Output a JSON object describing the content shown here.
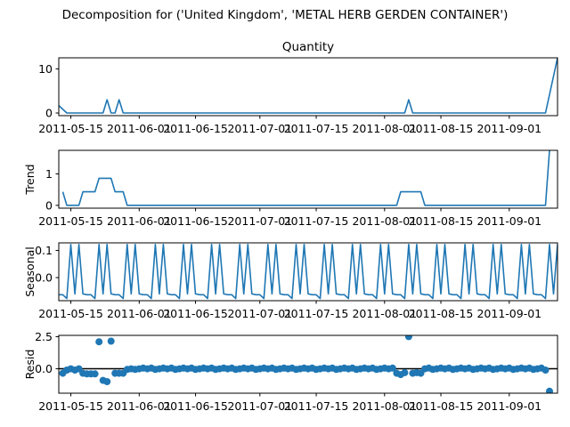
{
  "suptitle": "Decomposition for ('United Kingdom', 'METAL HERB GERDEN CONTAINER')",
  "line_color": "#1f77b4",
  "zero_line_color": "#000000",
  "x_ticks": [
    "2011-05-15",
    "2011-06-01",
    "2011-06-15",
    "2011-07-01",
    "2011-07-15",
    "2011-08-01",
    "2011-08-15",
    "2011-09-01"
  ],
  "x_tick_days": [
    3,
    20,
    34,
    50,
    64,
    81,
    95,
    112
  ],
  "x_range_days": [
    0,
    124
  ],
  "start_date": "2011-05-12",
  "chart_data": [
    {
      "type": "line",
      "title": "Quantity",
      "ylabel": "",
      "yticks": [
        "0",
        "10"
      ],
      "ytick_values": [
        0,
        10
      ],
      "ylim": [
        -0.6,
        12.5
      ],
      "points": [
        [
          0,
          1.7
        ],
        [
          2,
          0
        ],
        [
          11,
          0
        ],
        [
          12,
          3
        ],
        [
          13,
          0
        ],
        [
          14,
          0
        ],
        [
          15,
          3
        ],
        [
          16,
          0
        ],
        [
          86,
          0
        ],
        [
          87,
          3
        ],
        [
          88,
          0
        ],
        [
          121,
          0
        ],
        [
          124,
          12.5
        ]
      ]
    },
    {
      "type": "line",
      "title": "",
      "ylabel": "Trend",
      "yticks": [
        "0",
        "1"
      ],
      "ytick_values": [
        0,
        1
      ],
      "ylim": [
        -0.09,
        1.75
      ],
      "points": [
        [
          1,
          0.43
        ],
        [
          2,
          0
        ],
        [
          5,
          0
        ],
        [
          6,
          0.43
        ],
        [
          9,
          0.43
        ],
        [
          10,
          0.86
        ],
        [
          13,
          0.86
        ],
        [
          14,
          0.43
        ],
        [
          16,
          0.43
        ],
        [
          17,
          0
        ],
        [
          84,
          0
        ],
        [
          85,
          0.43
        ],
        [
          90,
          0.43
        ],
        [
          91,
          0
        ],
        [
          121,
          0
        ],
        [
          122,
          1.75
        ]
      ]
    },
    {
      "type": "line",
      "title": "",
      "ylabel": "Seasonal",
      "yticks": [
        "0.1",
        "0.0"
      ],
      "ytick_values": [
        0.1,
        0
      ],
      "ylim": [
        -0.085,
        0.128
      ],
      "weekly_pattern": [
        -0.063,
        -0.063,
        -0.077,
        0.122,
        -0.06,
        0.122,
        -0.06
      ],
      "phase_start_day": 0
    },
    {
      "type": "scatter",
      "title": "",
      "ylabel": "Resid",
      "yticks": [
        "2.5",
        "0.0"
      ],
      "ytick_values": [
        2.5,
        0
      ],
      "ylim": [
        -1.9,
        2.6
      ],
      "points": [
        [
          1,
          -0.35
        ],
        [
          2,
          -0.1
        ],
        [
          3,
          0
        ],
        [
          4,
          -0.1
        ],
        [
          5,
          0
        ],
        [
          6,
          -0.35
        ],
        [
          7,
          -0.4
        ],
        [
          8,
          -0.4
        ],
        [
          9,
          -0.4
        ],
        [
          10,
          2.1
        ],
        [
          11,
          -0.9
        ],
        [
          12,
          -1.0
        ],
        [
          13,
          2.15
        ],
        [
          14,
          -0.35
        ],
        [
          15,
          -0.35
        ],
        [
          16,
          -0.35
        ],
        [
          17,
          -0.05
        ],
        [
          18,
          0
        ],
        [
          19,
          -0.05
        ],
        [
          20,
          0
        ],
        [
          21,
          0.05
        ],
        [
          22,
          0
        ],
        [
          23,
          0.05
        ],
        [
          24,
          -0.05
        ],
        [
          25,
          0
        ],
        [
          26,
          0.05
        ],
        [
          27,
          0
        ],
        [
          28,
          0.05
        ],
        [
          29,
          -0.05
        ],
        [
          30,
          0
        ],
        [
          31,
          0.05
        ],
        [
          32,
          0
        ],
        [
          33,
          0.05
        ],
        [
          34,
          -0.05
        ],
        [
          35,
          0
        ],
        [
          36,
          0.05
        ],
        [
          37,
          0
        ],
        [
          38,
          0.05
        ],
        [
          39,
          -0.05
        ],
        [
          40,
          0
        ],
        [
          41,
          0.05
        ],
        [
          42,
          0
        ],
        [
          43,
          0.05
        ],
        [
          44,
          -0.05
        ],
        [
          45,
          0
        ],
        [
          46,
          0.05
        ],
        [
          47,
          0
        ],
        [
          48,
          0.05
        ],
        [
          49,
          -0.05
        ],
        [
          50,
          0
        ],
        [
          51,
          0.05
        ],
        [
          52,
          0
        ],
        [
          53,
          0.05
        ],
        [
          54,
          -0.05
        ],
        [
          55,
          0
        ],
        [
          56,
          0.05
        ],
        [
          57,
          0
        ],
        [
          58,
          0.05
        ],
        [
          59,
          -0.05
        ],
        [
          60,
          0
        ],
        [
          61,
          0.05
        ],
        [
          62,
          0
        ],
        [
          63,
          0.05
        ],
        [
          64,
          -0.05
        ],
        [
          65,
          0
        ],
        [
          66,
          0.05
        ],
        [
          67,
          0
        ],
        [
          68,
          0.05
        ],
        [
          69,
          -0.05
        ],
        [
          70,
          0
        ],
        [
          71,
          0.05
        ],
        [
          72,
          0
        ],
        [
          73,
          0.05
        ],
        [
          74,
          -0.05
        ],
        [
          75,
          0
        ],
        [
          76,
          0.05
        ],
        [
          77,
          0
        ],
        [
          78,
          0.05
        ],
        [
          79,
          -0.05
        ],
        [
          80,
          0
        ],
        [
          81,
          0.05
        ],
        [
          82,
          0
        ],
        [
          83,
          0.05
        ],
        [
          84,
          -0.35
        ],
        [
          85,
          -0.45
        ],
        [
          86,
          -0.3
        ],
        [
          87,
          2.5
        ],
        [
          88,
          -0.35
        ],
        [
          89,
          -0.3
        ],
        [
          90,
          -0.35
        ],
        [
          91,
          0
        ],
        [
          92,
          0.05
        ],
        [
          93,
          -0.05
        ],
        [
          94,
          0
        ],
        [
          95,
          0.05
        ],
        [
          96,
          0
        ],
        [
          97,
          0.05
        ],
        [
          98,
          -0.05
        ],
        [
          99,
          0
        ],
        [
          100,
          0.05
        ],
        [
          101,
          0
        ],
        [
          102,
          0.05
        ],
        [
          103,
          -0.05
        ],
        [
          104,
          0
        ],
        [
          105,
          0.05
        ],
        [
          106,
          0
        ],
        [
          107,
          0.05
        ],
        [
          108,
          -0.05
        ],
        [
          109,
          0
        ],
        [
          110,
          0.05
        ],
        [
          111,
          0
        ],
        [
          112,
          0.05
        ],
        [
          113,
          -0.05
        ],
        [
          114,
          0
        ],
        [
          115,
          0.05
        ],
        [
          116,
          0
        ],
        [
          117,
          0.05
        ],
        [
          118,
          -0.05
        ],
        [
          119,
          0
        ],
        [
          120,
          0.05
        ],
        [
          121,
          -0.1
        ],
        [
          122,
          -1.75
        ]
      ]
    }
  ]
}
